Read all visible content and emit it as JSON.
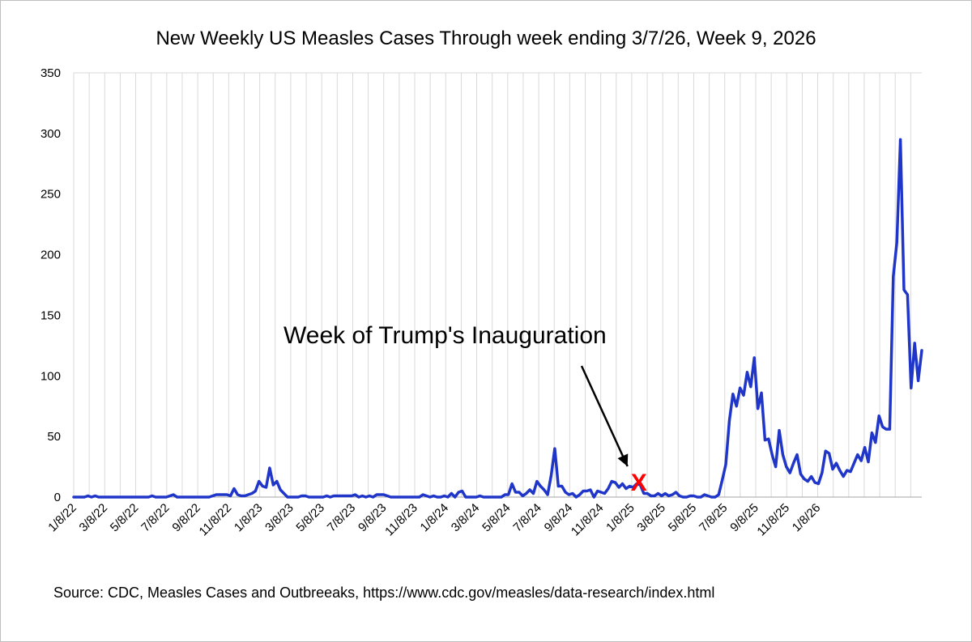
{
  "chart_data": {
    "type": "line",
    "title": "New Weekly US Measles Cases Through week ending 3/7/26, Week 9, 2026",
    "xlabel": "",
    "ylabel": "",
    "ylim": [
      0,
      350
    ],
    "y_ticks": [
      "0",
      "50",
      "100",
      "150",
      "200",
      "250",
      "300",
      "350"
    ],
    "x_tick_labels": [
      "1/8/22",
      "3/8/22",
      "5/8/22",
      "7/8/22",
      "9/8/22",
      "11/8/22",
      "1/8/23",
      "3/8/23",
      "5/8/23",
      "7/8/23",
      "9/8/23",
      "11/8/23",
      "1/8/24",
      "3/8/24",
      "5/8/24",
      "7/8/24",
      "9/8/24",
      "11/8/24",
      "1/8/25",
      "3/8/25",
      "5/8/25",
      "7/8/25",
      "9/8/25",
      "11/8/25",
      "1/8/26"
    ],
    "grid": "vertical",
    "legend": "none",
    "line_color": "#1f36c9",
    "series": [
      {
        "values": [
          0,
          0,
          0,
          0,
          1,
          0,
          1,
          0,
          0,
          0,
          0,
          0,
          0,
          0,
          0,
          0,
          0,
          0,
          0,
          0,
          0,
          0,
          1,
          0,
          0,
          0,
          0,
          1,
          2,
          0,
          0,
          0,
          0,
          0,
          0,
          0,
          0,
          0,
          0,
          1,
          2,
          2,
          2,
          2,
          1,
          7,
          2,
          1,
          1,
          2,
          3,
          5,
          13,
          9,
          8,
          24,
          10,
          13,
          6,
          3,
          0,
          0,
          0,
          0,
          1,
          1,
          0,
          0,
          0,
          0,
          0,
          1,
          0,
          1,
          1,
          1,
          1,
          1,
          1,
          2,
          0,
          1,
          0,
          1,
          0,
          2,
          2,
          2,
          1,
          0,
          0,
          0,
          0,
          0,
          0,
          0,
          0,
          0,
          2,
          1,
          0,
          1,
          0,
          0,
          1,
          0,
          3,
          0,
          4,
          5,
          0,
          0,
          0,
          0,
          1,
          0,
          0,
          0,
          0,
          0,
          0,
          2,
          2,
          11,
          4,
          4,
          1,
          3,
          6,
          3,
          13,
          9,
          6,
          2,
          18,
          40,
          9,
          9,
          4,
          2,
          3,
          0,
          2,
          5,
          5,
          6,
          0,
          5,
          4,
          3,
          7,
          13,
          12,
          8,
          11,
          7,
          9,
          8,
          11,
          10,
          3,
          3,
          1,
          1,
          3,
          1,
          3,
          1,
          2,
          4,
          1,
          0,
          0,
          1,
          1,
          0,
          0,
          2,
          1,
          0,
          0,
          2,
          14,
          27,
          63,
          85,
          75,
          90,
          84,
          103,
          91,
          115,
          73,
          86,
          47,
          48,
          35,
          25,
          55,
          35,
          25,
          20,
          28,
          35,
          19,
          15,
          13,
          17,
          12,
          11,
          20,
          38,
          36,
          23,
          28,
          22,
          17,
          22,
          21,
          28,
          35,
          30,
          41,
          29,
          53,
          45,
          67,
          58,
          56,
          56,
          182,
          210,
          295,
          171,
          167,
          90,
          127,
          96,
          121
        ]
      }
    ],
    "annotation": {
      "text": "Week of Trump's Inauguration",
      "marker": "X",
      "marker_color": "#ff0000",
      "arrow_color": "#000000",
      "x_label_ref": "1/8/25",
      "value": 0
    },
    "source": "Source: CDC, Measles Cases and Outbreeaks, https://www.cdc.gov/measles/data-research/index.html"
  }
}
